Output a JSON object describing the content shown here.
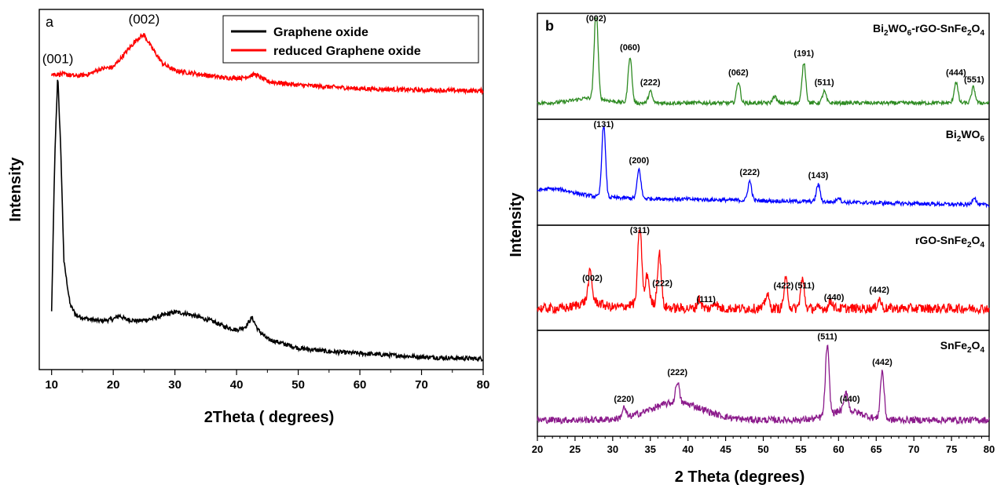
{
  "chart_data": [
    {
      "panel": "a",
      "type": "line",
      "xlabel": "2Theta ( degrees)",
      "ylabel": "Intensity",
      "xlim": [
        8,
        80
      ],
      "xticks": [
        10,
        20,
        30,
        40,
        50,
        60,
        70,
        80
      ],
      "y_tick_labels": false,
      "legend_position": "top-right",
      "series": [
        {
          "name": "Graphene oxide",
          "color": "#000000",
          "points": [
            [
              10,
              0.16
            ],
            [
              10.5,
              0.58
            ],
            [
              11,
              0.82
            ],
            [
              11.5,
              0.6
            ],
            [
              12,
              0.3
            ],
            [
              13,
              0.18
            ],
            [
              14,
              0.15
            ],
            [
              16,
              0.14
            ],
            [
              18,
              0.135
            ],
            [
              20,
              0.14
            ],
            [
              21,
              0.15
            ],
            [
              22,
              0.14
            ],
            [
              24,
              0.135
            ],
            [
              26,
              0.14
            ],
            [
              28,
              0.15
            ],
            [
              30,
              0.16
            ],
            [
              32,
              0.155
            ],
            [
              34,
              0.145
            ],
            [
              36,
              0.135
            ],
            [
              38,
              0.12
            ],
            [
              40,
              0.11
            ],
            [
              41.5,
              0.12
            ],
            [
              42.5,
              0.145
            ],
            [
              43.5,
              0.11
            ],
            [
              45,
              0.085
            ],
            [
              48,
              0.07
            ],
            [
              50,
              0.06
            ],
            [
              55,
              0.05
            ],
            [
              60,
              0.045
            ],
            [
              65,
              0.04
            ],
            [
              70,
              0.035
            ],
            [
              75,
              0.032
            ],
            [
              80,
              0.03
            ]
          ]
        },
        {
          "name": "reduced Graphene oxide",
          "color": "#ff0000",
          "points": [
            [
              10,
              0.82
            ],
            [
              12,
              0.82
            ],
            [
              14,
              0.815
            ],
            [
              16,
              0.82
            ],
            [
              18,
              0.835
            ],
            [
              20,
              0.84
            ],
            [
              22,
              0.88
            ],
            [
              24,
              0.92
            ],
            [
              25,
              0.93
            ],
            [
              26,
              0.9
            ],
            [
              28,
              0.85
            ],
            [
              30,
              0.83
            ],
            [
              34,
              0.82
            ],
            [
              38,
              0.81
            ],
            [
              41,
              0.81
            ],
            [
              43,
              0.82
            ],
            [
              45,
              0.8
            ],
            [
              50,
              0.79
            ],
            [
              55,
              0.785
            ],
            [
              60,
              0.78
            ],
            [
              65,
              0.778
            ],
            [
              70,
              0.776
            ],
            [
              75,
              0.775
            ],
            [
              80,
              0.774
            ]
          ]
        }
      ],
      "annotations": [
        {
          "text": "(002)",
          "x": 25,
          "series": "reduced Graphene oxide"
        },
        {
          "text": "(001)",
          "x": 11,
          "series": "Graphene oxide"
        }
      ]
    },
    {
      "panel": "b",
      "type": "line",
      "xlabel": "2 Theta (degrees)",
      "ylabel": "Intensity",
      "xlim": [
        20,
        80
      ],
      "xticks": [
        20,
        25,
        30,
        35,
        40,
        45,
        50,
        55,
        60,
        65,
        70,
        75,
        80
      ],
      "y_tick_labels": false,
      "series": [
        {
          "name": "Bi2WO6-rGO-SnFe2O4",
          "label_parts": [
            "Bi",
            "2",
            "WO",
            "6",
            "-rGO-SnFe",
            "2",
            "O",
            "4"
          ],
          "color": "#2e8b22",
          "baseline": 0.12,
          "peaks": [
            [
              27.8,
              0.95
            ],
            [
              32.3,
              0.48
            ],
            [
              35,
              0.12
            ],
            [
              46.7,
              0.22
            ],
            [
              51.5,
              0.07
            ],
            [
              55.4,
              0.42
            ],
            [
              58.1,
              0.12
            ],
            [
              75.6,
              0.22
            ],
            [
              77.9,
              0.16
            ]
          ],
          "annotations": [
            {
              "text": "(002)",
              "x": 27.8
            },
            {
              "text": "(060)",
              "x": 32.3
            },
            {
              "text": "(222)",
              "x": 35
            },
            {
              "text": "(062)",
              "x": 46.7
            },
            {
              "text": "(191)",
              "x": 55.4
            },
            {
              "text": "(511)",
              "x": 58.1
            },
            {
              "text": "(444)",
              "x": 75.6
            },
            {
              "text": "(551)",
              "x": 78
            }
          ]
        },
        {
          "name": "Bi2WO6",
          "label_parts": [
            "Bi",
            "2",
            "WO",
            "6"
          ],
          "color": "#0000ff",
          "baseline": 0.25,
          "peaks": [
            [
              28.8,
              0.75
            ],
            [
              33.5,
              0.3
            ],
            [
              48.2,
              0.2
            ],
            [
              57.3,
              0.18
            ],
            [
              60,
              0.05
            ],
            [
              78,
              0.08
            ]
          ],
          "annotations": [
            {
              "text": "(131)",
              "x": 28.8
            },
            {
              "text": "(200)",
              "x": 33.5
            },
            {
              "text": "(222)",
              "x": 48.2
            },
            {
              "text": "(143)",
              "x": 57.3
            }
          ]
        },
        {
          "name": "rGO-SnFe2O4",
          "label_parts": [
            "rGO-SnFe",
            "2",
            "O",
            "4"
          ],
          "color": "#ff0000",
          "baseline": 0.18,
          "peaks": [
            [
              27,
              0.3
            ],
            [
              33.6,
              0.85
            ],
            [
              34.6,
              0.3
            ],
            [
              36.2,
              0.55
            ],
            [
              41.5,
              0.1
            ],
            [
              43.6,
              0.07
            ],
            [
              50.5,
              0.15
            ],
            [
              53,
              0.3
            ],
            [
              55.2,
              0.3
            ],
            [
              59,
              0.08
            ],
            [
              65.4,
              0.1
            ]
          ],
          "annotations": [
            {
              "text": "(002)",
              "x": 27.3
            },
            {
              "text": "(311)",
              "x": 33.6
            },
            {
              "text": "(222)",
              "x": 36.6
            },
            {
              "text": "(111)",
              "x": 42.4
            },
            {
              "text": "(422)",
              "x": 52.7
            },
            {
              "text": "(511)",
              "x": 55.5
            },
            {
              "text": "(440)",
              "x": 59.4
            },
            {
              "text": "(442)",
              "x": 65.4
            }
          ]
        },
        {
          "name": "SnFe2O4",
          "label_parts": [
            "SnFe",
            "2",
            "O",
            "4"
          ],
          "color": "#8b1a8b",
          "baseline": 0.12,
          "peaks": [
            [
              31.5,
              0.1
            ],
            [
              38.6,
              0.22
            ],
            [
              58.5,
              0.72
            ],
            [
              61,
              0.2
            ],
            [
              65.8,
              0.5
            ]
          ],
          "annotations": [
            {
              "text": "(220)",
              "x": 31.5
            },
            {
              "text": "(222)",
              "x": 38.6
            },
            {
              "text": "(511)",
              "x": 58.5
            },
            {
              "text": "(440)",
              "x": 61.5
            },
            {
              "text": "(442)",
              "x": 65.8
            }
          ]
        }
      ]
    }
  ]
}
